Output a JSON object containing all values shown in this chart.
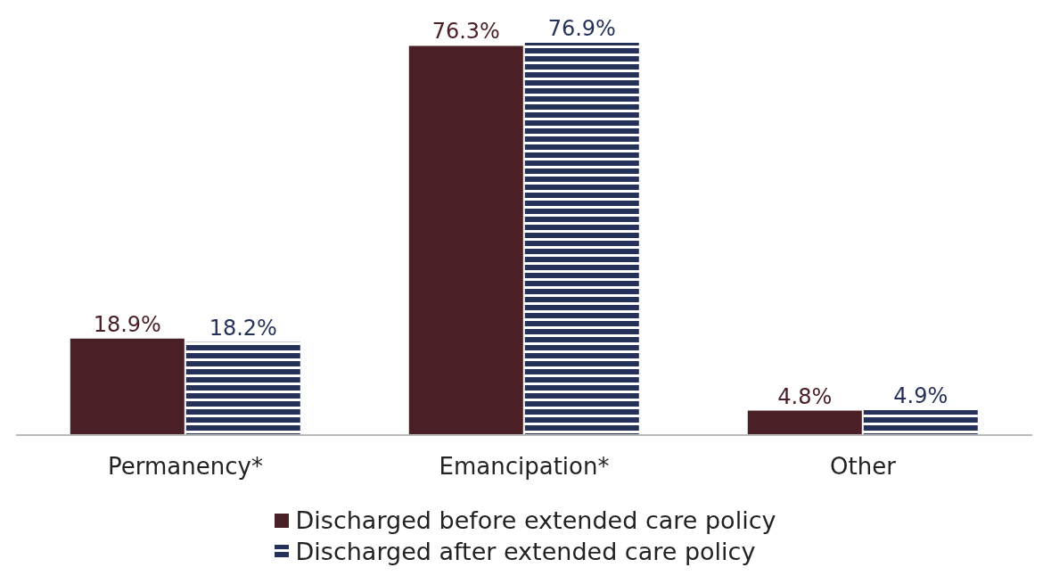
{
  "chart_data": {
    "type": "bar",
    "categories": [
      "Permanency*",
      "Emancipation*",
      "Other"
    ],
    "series": [
      {
        "name": "Discharged before extended care policy",
        "color": "#4a2026",
        "values": [
          18.9,
          76.3,
          4.8
        ],
        "value_labels": [
          "18.9%",
          "76.3%",
          "4.8%"
        ]
      },
      {
        "name": "Discharged after extended care policy",
        "color": "#253159",
        "values": [
          18.2,
          76.9,
          4.9
        ],
        "value_labels": [
          "18.2%",
          "76.9%",
          "4.9%"
        ]
      }
    ],
    "legend": "bottom",
    "grid": false
  }
}
